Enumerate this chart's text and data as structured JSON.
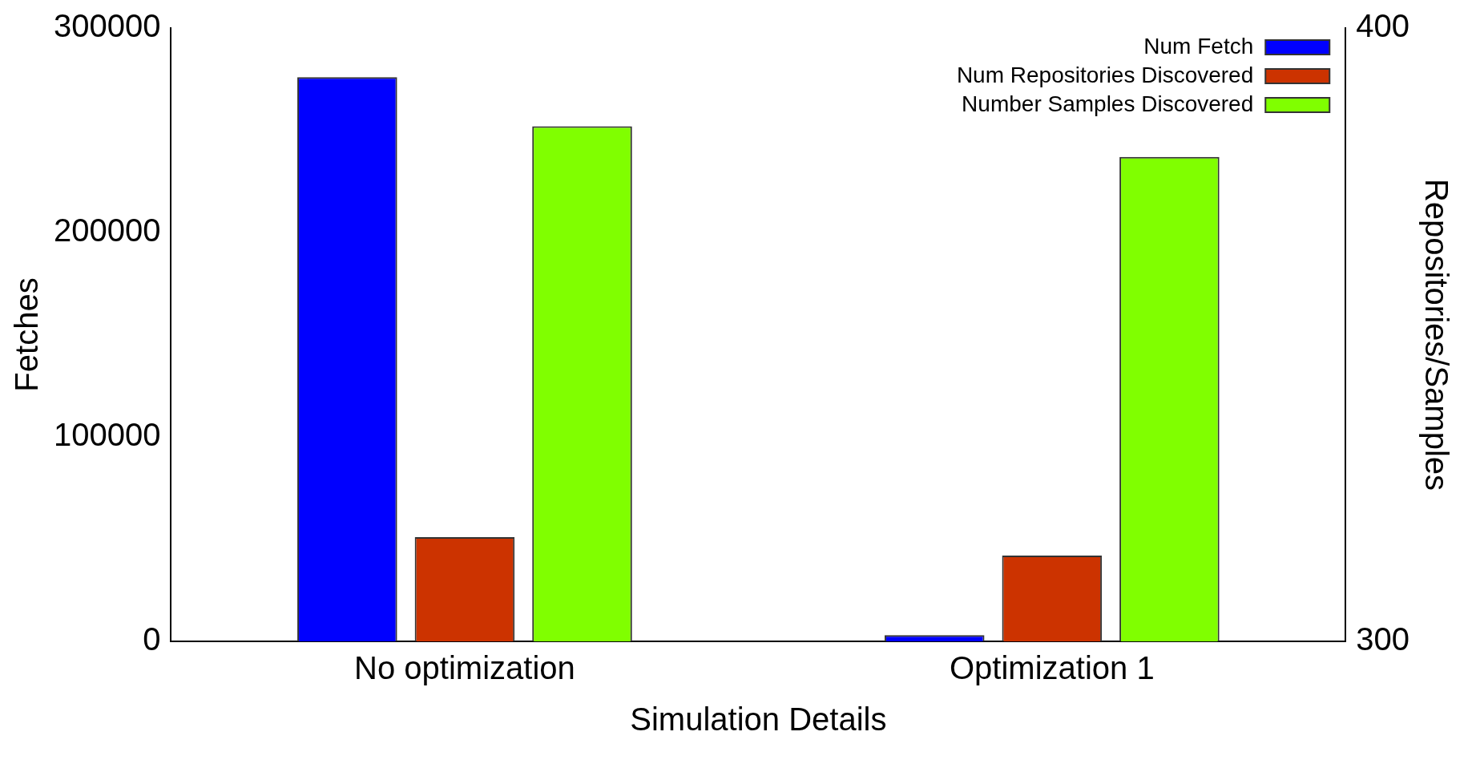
{
  "chart_data": {
    "type": "bar",
    "xlabel": "Simulation Details",
    "ylabel": "Fetches",
    "y2label": "Repositories/Samples",
    "categories": [
      "No optimization",
      "Optimization 1"
    ],
    "series": [
      {
        "name": "Num Fetch",
        "color": "#0000ff",
        "values": [
          276000,
          3000
        ]
      },
      {
        "name": "Num Repositories Discovered",
        "color": "#cc3300",
        "values": [
          317,
          314
        ],
        "axis": "y2"
      },
      {
        "name": "Number Samples Discovered",
        "color": "#80ff00",
        "values": [
          384,
          379
        ],
        "axis": "y2"
      }
    ],
    "ylim": [
      0,
      300000
    ],
    "yticks": [
      0,
      100000,
      200000,
      300000
    ],
    "y2lim": [
      300,
      400
    ],
    "y2ticks": [
      300,
      400
    ],
    "grid": false,
    "legend": "top right"
  }
}
